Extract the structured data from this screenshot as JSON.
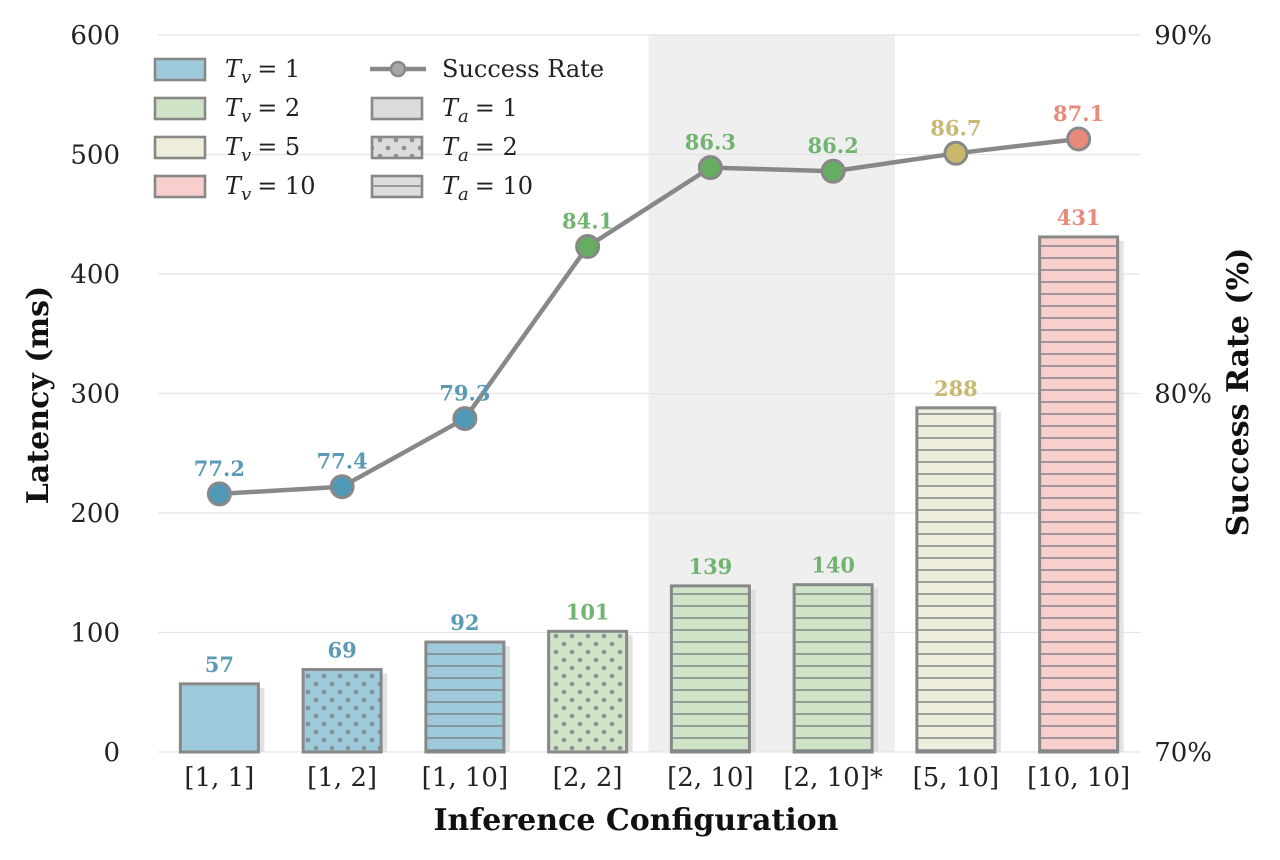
{
  "chart_data": {
    "type": "bar",
    "title": "",
    "xlabel": "Inference Configuration",
    "ylabel": "Latency (ms)",
    "y2label": "Success Rate (%)",
    "ylim": [
      0,
      600
    ],
    "y2lim": [
      70,
      90
    ],
    "yticks": [
      "0",
      "100",
      "200",
      "300",
      "400",
      "500",
      "600"
    ],
    "y2ticks": [
      "70%",
      "80%",
      "90%"
    ],
    "grid": true,
    "legend_position": "top-left",
    "categories": [
      "[1, 1]",
      "[1, 2]",
      "[1, 10]",
      "[2, 2]",
      "[2, 10]",
      "[2, 10]*",
      "[5, 10]",
      "[10, 10]"
    ],
    "highlight_categories": [
      "[2, 10]",
      "[2, 10]*"
    ],
    "latency": {
      "values": [
        57,
        69,
        92,
        101,
        139,
        140,
        288,
        431
      ],
      "labels": [
        "57",
        "69",
        "92",
        "101",
        "139",
        "140",
        "288",
        "431"
      ],
      "tv": [
        1,
        1,
        1,
        2,
        2,
        2,
        5,
        10
      ],
      "ta": [
        1,
        2,
        10,
        2,
        10,
        10,
        10,
        10
      ]
    },
    "success_rate": {
      "name": "Success Rate",
      "values": [
        77.2,
        77.4,
        79.3,
        84.1,
        86.3,
        86.2,
        86.7,
        87.1
      ],
      "labels": [
        "77.2",
        "77.4",
        "79.3",
        "84.1",
        "86.3",
        "86.2",
        "86.7",
        "87.1"
      ]
    },
    "legend": {
      "tv_entries": [
        {
          "label": "= 1",
          "tv": 1
        },
        {
          "label": "= 2",
          "tv": 2
        },
        {
          "label": "= 5",
          "tv": 5
        },
        {
          "label": "= 10",
          "tv": 10
        }
      ],
      "line_entry": {
        "label": "Success Rate"
      },
      "ta_entries": [
        {
          "label": "= 1",
          "pattern": "solid"
        },
        {
          "label": "= 2",
          "pattern": "dots"
        },
        {
          "label": "= 10",
          "pattern": "horizontal-lines"
        }
      ],
      "tv_symbol": "T",
      "tv_sub": "v",
      "ta_symbol": "T",
      "ta_sub": "a"
    },
    "colors": {
      "tv_1_fill": "#9ecbdb",
      "tv_2_fill": "#cfe3c7",
      "tv_5_fill": "#efeddc",
      "tv_10_fill": "#f8cfcc",
      "tv_1_label": "#5b9ab5",
      "tv_2_label": "#71b371",
      "tv_5_label": "#c8b871",
      "tv_10_label": "#e58c7c",
      "tv_1_marker": "#4f99b6",
      "tv_2_marker": "#67ad61",
      "tv_5_marker": "#c8b86c",
      "tv_10_marker": "#e88a7b",
      "bar_edge": "#888888",
      "line": "#888888",
      "highlight_band": "#efefef",
      "grid": "#e4e4e4"
    }
  }
}
